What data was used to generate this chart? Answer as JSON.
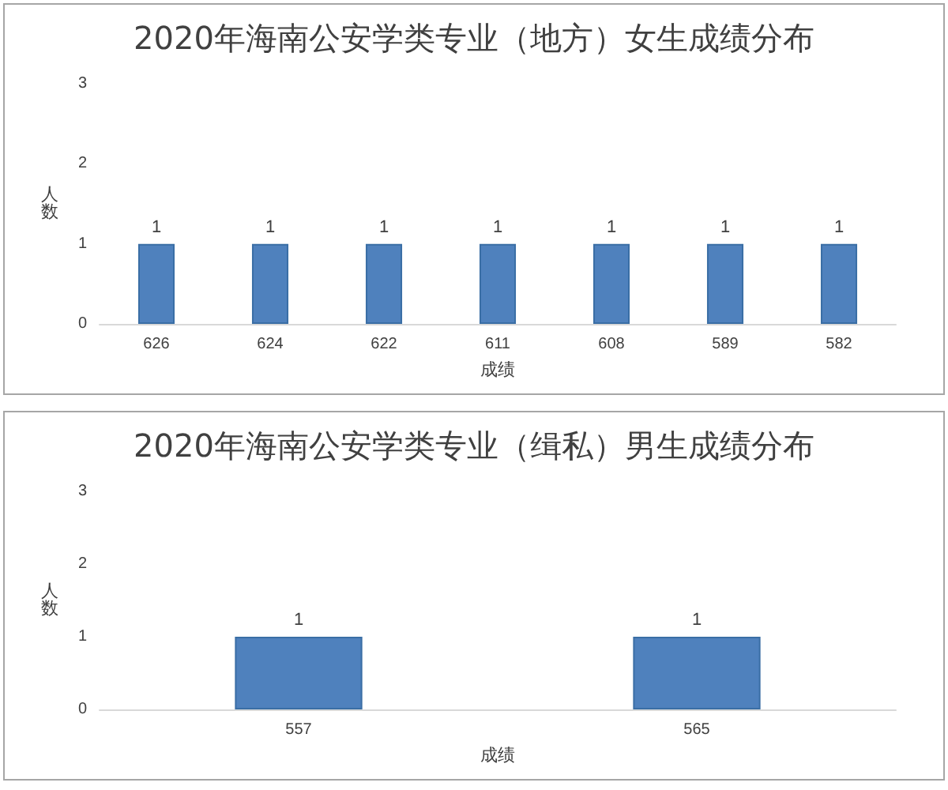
{
  "chart_data": [
    {
      "type": "bar",
      "title": "2020年海南公安学类专业（地方）女生成绩分布",
      "xlabel": "成绩",
      "ylabel": "人数",
      "categories": [
        "626",
        "624",
        "622",
        "611",
        "608",
        "589",
        "582"
      ],
      "values": [
        1,
        1,
        1,
        1,
        1,
        1,
        1
      ],
      "color": "#4f81bd",
      "ylim": [
        0,
        3
      ],
      "yticks": [
        0,
        1,
        2,
        3
      ],
      "grid": false,
      "data_labels": true
    },
    {
      "type": "bar",
      "title": "2020年海南公安学类专业（缉私）男生成绩分布",
      "xlabel": "成绩",
      "ylabel": "人数",
      "categories": [
        "557",
        "565"
      ],
      "values": [
        1,
        1
      ],
      "color": "#4f81bd",
      "ylim": [
        0,
        3
      ],
      "yticks": [
        0,
        1,
        2,
        3
      ],
      "grid": false,
      "data_labels": true
    }
  ]
}
